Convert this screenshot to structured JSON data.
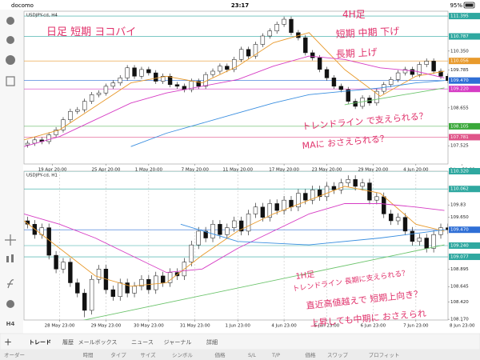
{
  "status_bar": {
    "carrier": "docomo",
    "time": "23:17",
    "battery": "95%"
  },
  "toolbar": {
    "timeframe": "H4"
  },
  "chart_data": [
    {
      "type": "candlestick",
      "title": "USDJPY-cd, H4",
      "xlim": [
        0,
        64
      ],
      "ylim": [
        106.98,
        111.54
      ],
      "xticks": [
        {
          "value": 4,
          "label": "19 Apr 20:00"
        },
        {
          "value": 11.5,
          "label": "25 Apr 20:00"
        },
        {
          "value": 17.5,
          "label": "1 May 20:00"
        },
        {
          "value": 24,
          "label": "7 May 20:00"
        },
        {
          "value": 30,
          "label": "11 May 20:00"
        },
        {
          "value": 36.5,
          "label": "17 May 20:00"
        },
        {
          "value": 42.5,
          "label": "23 May 20:00"
        },
        {
          "value": 49,
          "label": "29 May 20:00"
        },
        {
          "value": 55,
          "label": "4 Jun 20:00"
        },
        {
          "value": 61.5,
          "label": "8 Jun 20:00"
        }
      ],
      "yticks": [
        {
          "value": 111.395,
          "label": "111.395",
          "color": "#2fa8a0"
        },
        {
          "value": 110.787,
          "label": "110.787",
          "color": "#2fa8a0"
        },
        {
          "value": 110.35,
          "label": "110.350"
        },
        {
          "value": 110.056,
          "label": "110.056",
          "color": "#e89a2c"
        },
        109.785,
        {
          "value": 109.47,
          "label": "109.470",
          "color": "#2f6fd6"
        },
        {
          "value": 109.22,
          "label": "109.220",
          "color": "#d63cc4"
        },
        108.655,
        {
          "value": 108.105,
          "label": "108.105",
          "color": "#3aa83a"
        },
        {
          "value": 107.781,
          "label": "107.781",
          "color": "#e0558a"
        },
        107.525
      ],
      "ohlc": [
        [
          107.55,
          107.68,
          107.47,
          107.6
        ],
        [
          107.6,
          107.78,
          107.52,
          107.7
        ],
        [
          107.7,
          107.78,
          107.57,
          107.65
        ],
        [
          107.65,
          107.93,
          107.57,
          107.85
        ],
        [
          107.85,
          108.08,
          107.77,
          108
        ],
        [
          108,
          108.38,
          107.92,
          108.3
        ],
        [
          108.3,
          108.63,
          108.22,
          108.55
        ],
        [
          108.55,
          108.68,
          108.47,
          108.6
        ],
        [
          108.6,
          108.93,
          108.52,
          108.85
        ],
        [
          108.85,
          109.13,
          108.77,
          109.05
        ],
        [
          109.05,
          109.18,
          108.97,
          109.1
        ],
        [
          109.1,
          109.38,
          109.02,
          109.3
        ],
        [
          109.3,
          109.48,
          109.22,
          109.4
        ],
        [
          109.4,
          109.63,
          109.32,
          109.55
        ],
        [
          109.55,
          109.93,
          109.47,
          109.85
        ],
        [
          109.85,
          109.93,
          109.52,
          109.6
        ],
        [
          109.6,
          109.88,
          109.52,
          109.8
        ],
        [
          109.8,
          109.88,
          109.62,
          109.7
        ],
        [
          109.7,
          109.78,
          109.37,
          109.45
        ],
        [
          109.45,
          109.68,
          109.37,
          109.6
        ],
        [
          109.6,
          109.68,
          109.27,
          109.35
        ],
        [
          109.35,
          109.43,
          109.22,
          109.3
        ],
        [
          109.3,
          109.38,
          109.12,
          109.2
        ],
        [
          109.2,
          109.53,
          109.12,
          109.45
        ],
        [
          109.45,
          109.53,
          109.22,
          109.3
        ],
        [
          109.3,
          109.73,
          109.22,
          109.65
        ],
        [
          109.65,
          109.83,
          109.57,
          109.75
        ],
        [
          109.75,
          109.98,
          109.67,
          109.9
        ],
        [
          109.9,
          109.98,
          109.72,
          109.8
        ],
        [
          109.8,
          110.18,
          109.72,
          110.1
        ],
        [
          110.1,
          110.48,
          110.02,
          110.4
        ],
        [
          110.4,
          110.48,
          110.12,
          110.2
        ],
        [
          110.2,
          110.63,
          110.12,
          110.55
        ],
        [
          110.55,
          110.88,
          110.47,
          110.8
        ],
        [
          110.8,
          111.03,
          110.72,
          110.95
        ],
        [
          110.95,
          111.23,
          110.87,
          111.15
        ],
        [
          111.15,
          111.38,
          111.07,
          111.3
        ],
        [
          111.3,
          111.38,
          110.82,
          110.9
        ],
        [
          110.9,
          110.98,
          110.67,
          110.75
        ],
        [
          110.75,
          110.83,
          110.22,
          110.3
        ],
        [
          110.3,
          110.38,
          110.07,
          110.15
        ],
        [
          110.15,
          110.23,
          109.72,
          109.8
        ],
        [
          109.8,
          109.88,
          109.47,
          109.55
        ],
        [
          109.55,
          109.63,
          109.22,
          109.3
        ],
        [
          109.3,
          109.38,
          109.12,
          109.2
        ],
        [
          109.2,
          109.28,
          108.77,
          108.85
        ],
        [
          108.85,
          108.93,
          108.62,
          108.7
        ],
        [
          108.7,
          109.03,
          108.62,
          108.95
        ],
        [
          108.95,
          109.03,
          108.72,
          108.8
        ],
        [
          108.8,
          109.23,
          108.72,
          109.15
        ],
        [
          109.15,
          109.43,
          109.07,
          109.35
        ],
        [
          109.35,
          109.58,
          109.27,
          109.5
        ],
        [
          109.5,
          109.78,
          109.42,
          109.7
        ],
        [
          109.7,
          109.88,
          109.62,
          109.8
        ],
        [
          109.8,
          109.88,
          109.57,
          109.65
        ],
        [
          109.65,
          110.03,
          109.57,
          109.95
        ],
        [
          109.95,
          110.13,
          109.87,
          110.05
        ],
        [
          110.05,
          110.13,
          109.67,
          109.75
        ],
        [
          109.75,
          109.83,
          109.52,
          109.6
        ],
        [
          109.6,
          109.68,
          109.39,
          109.47
        ]
      ],
      "lines": [
        {
          "color": "#e89a2c",
          "x": [
            0,
            5,
            10,
            15,
            20,
            25,
            30,
            35,
            40,
            45,
            50,
            55,
            59
          ],
          "values": [
            107.7,
            108,
            108.7,
            109.4,
            109.6,
            109.4,
            109.9,
            110.6,
            110.9,
            109.8,
            109,
            109.6,
            109.75
          ]
        },
        {
          "color": "#d63cc4",
          "x": [
            0,
            5,
            10,
            15,
            20,
            25,
            30,
            35,
            40,
            45,
            50,
            55,
            59
          ],
          "values": [
            107.5,
            107.8,
            108.3,
            108.8,
            109.1,
            109.3,
            109.5,
            109.9,
            110.2,
            110.1,
            109.85,
            109.75,
            109.55
          ]
        },
        {
          "color": "#3b8fe0",
          "x": [
            15,
            20,
            25,
            30,
            35,
            40,
            45,
            50,
            55,
            59
          ],
          "values": [
            107.5,
            107.9,
            108.2,
            108.5,
            108.8,
            109.05,
            109.15,
            109.25,
            109.4,
            109.47
          ]
        },
        {
          "color": "#6cc46c",
          "x": [
            45,
            59
          ],
          "values": [
            108.75,
            109.25
          ]
        }
      ],
      "annotations": [
        "日足 短期 ヨコバイ",
        "4H足",
        "短期 中期 下げ",
        "長期 上げ",
        "トレンドライン で支えられる？",
        "MAに おさえられる？"
      ]
    },
    {
      "type": "candlestick",
      "title": "USDJPY-cd, H1",
      "vgrid": true,
      "xlim": [
        0,
        64
      ],
      "ylim": [
        108.16,
        110.32
      ],
      "xticks": [
        {
          "value": 5,
          "label": "28 May 23:00"
        },
        {
          "value": 11.5,
          "label": "29 May 23:00"
        },
        {
          "value": 17.5,
          "label": "30 May 23:00"
        },
        {
          "value": 24,
          "label": "31 May 23:00"
        },
        {
          "value": 30,
          "label": "1 Jun 23:00"
        },
        {
          "value": 36.5,
          "label": "4 Jun 23:00"
        },
        {
          "value": 42.5,
          "label": "5 Jun 23:00"
        },
        {
          "value": 49,
          "label": "6 Jun 23:00"
        },
        {
          "value": 55,
          "label": "7 Jun 23:00"
        },
        {
          "value": 61.5,
          "label": "8 Jun 23:00"
        }
      ],
      "yticks": [
        {
          "value": 110.32,
          "label": "110.320",
          "color": "#2fa8a0"
        },
        {
          "value": 110.062,
          "label": "110.062",
          "color": "#2fa8a0"
        },
        109.83,
        {
          "value": 109.65,
          "label": "109.650"
        },
        {
          "value": 109.47,
          "label": "109.470",
          "color": "#2f6fd6"
        },
        {
          "value": 109.24,
          "label": "109.240",
          "color": "#2fa8a0"
        },
        {
          "value": 109.077,
          "label": "109.077",
          "color": "#2fa8a0"
        },
        108.895,
        108.645,
        {
          "value": 108.42,
          "label": "108.420"
        },
        {
          "value": 108.17,
          "label": "108.170"
        }
      ],
      "ohlc": [
        [
          109.6,
          109.66,
          109.49,
          109.55
        ],
        [
          109.55,
          109.61,
          109.34,
          109.4
        ],
        [
          109.4,
          109.56,
          109.34,
          109.5
        ],
        [
          109.5,
          109.56,
          109.04,
          109.1
        ],
        [
          109.1,
          109.16,
          108.84,
          108.9
        ],
        [
          108.9,
          109.06,
          108.84,
          109
        ],
        [
          109,
          109.06,
          108.64,
          108.7
        ],
        [
          108.7,
          108.76,
          108.49,
          108.55
        ],
        [
          108.55,
          108.61,
          108.2,
          108.3
        ],
        [
          108.3,
          108.81,
          108.24,
          108.75
        ],
        [
          108.75,
          108.96,
          108.69,
          108.9
        ],
        [
          108.9,
          108.96,
          108.54,
          108.6
        ],
        [
          108.6,
          108.66,
          108.44,
          108.5
        ],
        [
          108.5,
          108.76,
          108.44,
          108.7
        ],
        [
          108.7,
          108.76,
          108.49,
          108.55
        ],
        [
          108.55,
          108.71,
          108.49,
          108.65
        ],
        [
          108.65,
          108.81,
          108.59,
          108.75
        ],
        [
          108.75,
          108.81,
          108.54,
          108.6
        ],
        [
          108.6,
          108.86,
          108.54,
          108.8
        ],
        [
          108.8,
          108.86,
          108.64,
          108.7
        ],
        [
          108.7,
          108.91,
          108.64,
          108.85
        ],
        [
          108.85,
          108.91,
          108.74,
          108.8
        ],
        [
          108.8,
          109.06,
          108.74,
          109
        ],
        [
          109,
          109.31,
          108.94,
          109.25
        ],
        [
          109.25,
          109.51,
          109.19,
          109.45
        ],
        [
          109.45,
          109.51,
          109.29,
          109.35
        ],
        [
          109.35,
          109.61,
          109.29,
          109.55
        ],
        [
          109.55,
          109.61,
          109.34,
          109.4
        ],
        [
          109.4,
          109.56,
          109.34,
          109.5
        ],
        [
          109.5,
          109.66,
          109.44,
          109.6
        ],
        [
          109.6,
          109.66,
          109.39,
          109.45
        ],
        [
          109.45,
          109.76,
          109.39,
          109.7
        ],
        [
          109.7,
          109.86,
          109.64,
          109.8
        ],
        [
          109.8,
          109.86,
          109.59,
          109.65
        ],
        [
          109.65,
          109.91,
          109.59,
          109.85
        ],
        [
          109.85,
          109.91,
          109.69,
          109.75
        ],
        [
          109.75,
          109.96,
          109.69,
          109.9
        ],
        [
          109.9,
          109.96,
          109.74,
          109.8
        ],
        [
          109.8,
          110.06,
          109.74,
          110
        ],
        [
          110,
          110.06,
          109.84,
          109.9
        ],
        [
          109.9,
          110.11,
          109.84,
          110.05
        ],
        [
          110.05,
          110.11,
          109.89,
          109.95
        ],
        [
          109.95,
          110.16,
          109.89,
          110.1
        ],
        [
          110.1,
          110.16,
          109.99,
          110.05
        ],
        [
          110.05,
          110.21,
          109.99,
          110.15
        ],
        [
          110.15,
          110.26,
          110.09,
          110.2
        ],
        [
          110.2,
          110.26,
          110.04,
          110.1
        ],
        [
          110.1,
          110.21,
          110.04,
          110.15
        ],
        [
          110.15,
          110.21,
          109.84,
          109.9
        ],
        [
          109.9,
          110.01,
          109.84,
          109.95
        ],
        [
          109.95,
          110.01,
          109.64,
          109.7
        ],
        [
          109.7,
          109.76,
          109.54,
          109.6
        ],
        [
          109.6,
          109.71,
          109.54,
          109.65
        ],
        [
          109.65,
          109.71,
          109.39,
          109.45
        ],
        [
          109.45,
          109.51,
          109.24,
          109.3
        ],
        [
          109.3,
          109.41,
          109.24,
          109.35
        ],
        [
          109.35,
          109.41,
          109.14,
          109.2
        ],
        [
          109.2,
          109.46,
          109.14,
          109.4
        ],
        [
          109.4,
          109.56,
          109.34,
          109.5
        ],
        [
          109.5,
          109.56,
          109.41,
          109.47
        ]
      ],
      "lines": [
        {
          "color": "#e89a2c",
          "x": [
            0,
            5,
            10,
            15,
            20,
            25,
            30,
            35,
            40,
            45,
            50,
            55,
            59
          ],
          "values": [
            109.6,
            109.2,
            108.8,
            108.65,
            108.7,
            109.1,
            109.45,
            109.7,
            109.9,
            110.1,
            110,
            109.55,
            109.45
          ]
        },
        {
          "color": "#d63cc4",
          "x": [
            0,
            5,
            10,
            15,
            20,
            25,
            30,
            35,
            40,
            45,
            50,
            55,
            59
          ],
          "values": [
            109.7,
            109.55,
            109.35,
            109.1,
            108.85,
            108.9,
            109.2,
            109.45,
            109.7,
            109.85,
            109.85,
            109.8,
            109.75
          ]
        },
        {
          "color": "#3b8fe0",
          "x": [
            22,
            30,
            40,
            50,
            59
          ],
          "values": [
            109.55,
            109.3,
            109.25,
            109.35,
            109.47
          ]
        },
        {
          "color": "#6cc46c",
          "x": [
            8,
            59
          ],
          "values": [
            108.15,
            109.25
          ]
        }
      ],
      "annotations": [
        "1H足",
        "トレンドライン 長期に支えられる？",
        "直近高値越えで 短期上向き？",
        "上昇しても中期に おさえられ",
        "下落？"
      ]
    }
  ],
  "tabs": [
    "トレード",
    "履歴",
    "メールボックス",
    "ニュース",
    "ジャーナル",
    "詳細"
  ],
  "active_tab": "トレード",
  "columns": [
    "オーダー",
    "時間",
    "タイプ",
    "サイズ",
    "シンボル",
    "価格",
    "S/L",
    "T/P",
    "価格",
    "スワップ",
    "プロフィット"
  ]
}
